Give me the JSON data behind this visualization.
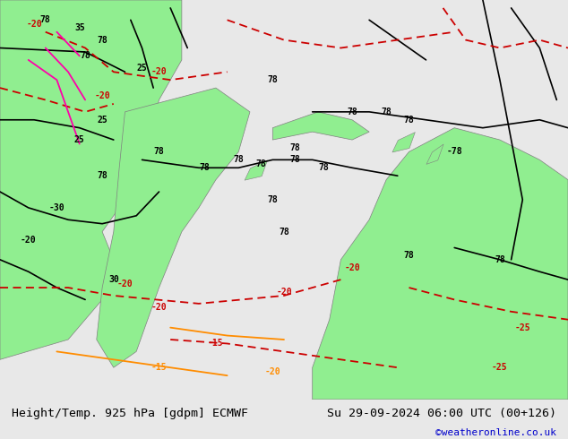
{
  "title_left": "Height/Temp. 925 hPa [gdpm] ECMWF",
  "title_right": "Su 29-09-2024 06:00 UTC (00+126)",
  "credit": "©weatheronline.co.uk",
  "bg_color": "#e8e8e8",
  "map_bg": "#f0f0f0",
  "green_fill": "#90ee90",
  "fig_width": 6.34,
  "fig_height": 4.9,
  "dpi": 100,
  "bottom_bar_color": "#d8d8d8",
  "title_font_size": 9.5,
  "credit_color": "#0000cc",
  "credit_font_size": 8
}
